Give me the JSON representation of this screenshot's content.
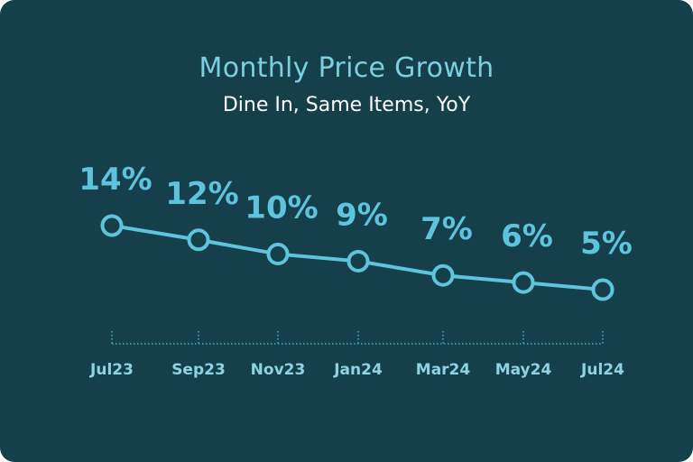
{
  "chart": {
    "title": "Monthly Price Growth",
    "subtitle": "Dine In, Same Items, YoY"
  },
  "colors": {
    "background": "#143f4b",
    "title": "#7ccfe0",
    "subtitle": "#ffffff",
    "line": "#5ec3dc",
    "axis": "#4aa9c0"
  },
  "chart_data": {
    "type": "line",
    "title": "Monthly Price Growth",
    "subtitle": "Dine In, Same Items, YoY",
    "categories": [
      "Jul23",
      "Sep23",
      "Nov23",
      "Jan24",
      "Mar24",
      "May24",
      "Jul24"
    ],
    "values": [
      14,
      12,
      10,
      9,
      7,
      6,
      5
    ],
    "data_labels": [
      "14%",
      "12%",
      "10%",
      "9%",
      "7%",
      "6%",
      "5%"
    ],
    "xlabel": "",
    "ylabel": "",
    "unit": "%",
    "grid": false,
    "legend": null
  }
}
